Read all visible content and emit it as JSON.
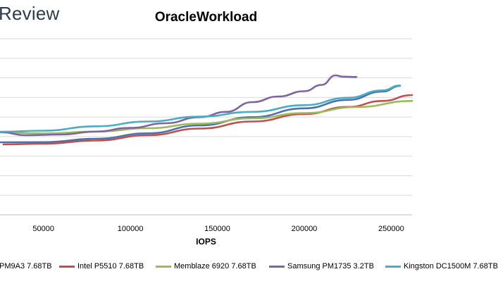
{
  "brand": "Review",
  "chart_data": {
    "type": "line",
    "title": "OracleWorkload",
    "xlabel": "IOPS",
    "ylabel": "",
    "xlim": [
      25000,
      262000
    ],
    "ylim": [
      0,
      1
    ],
    "x_ticks": [
      "50000",
      "100000",
      "150000",
      "200000",
      "250000"
    ],
    "x_tick_values": [
      50000,
      100000,
      150000,
      200000,
      250000
    ],
    "grid": true,
    "legend_position": "bottom",
    "series": [
      {
        "name": "PM9A3 7.68TB",
        "color": "#4f6fae",
        "points": [
          [
            25000,
            0.412
          ],
          [
            50000,
            0.413
          ],
          [
            80000,
            0.432
          ],
          [
            110000,
            0.463
          ],
          [
            140000,
            0.508
          ],
          [
            170000,
            0.555
          ],
          [
            200000,
            0.605
          ],
          [
            225000,
            0.653
          ],
          [
            245000,
            0.7
          ],
          [
            255000,
            0.732
          ]
        ]
      },
      {
        "name": "Intel P5510 7.68TB",
        "color": "#c0504d",
        "points": [
          [
            27000,
            0.4
          ],
          [
            50000,
            0.404
          ],
          [
            80000,
            0.422
          ],
          [
            110000,
            0.452
          ],
          [
            140000,
            0.49
          ],
          [
            170000,
            0.53
          ],
          [
            200000,
            0.572
          ],
          [
            225000,
            0.613
          ],
          [
            245000,
            0.647
          ],
          [
            262000,
            0.68
          ]
        ]
      },
      {
        "name": "Memblaze 6920 7.68TB",
        "color": "#9bbb59",
        "points": [
          [
            25000,
            0.468
          ],
          [
            50000,
            0.462
          ],
          [
            80000,
            0.473
          ],
          [
            110000,
            0.492
          ],
          [
            140000,
            0.518
          ],
          [
            170000,
            0.548
          ],
          [
            200000,
            0.578
          ],
          [
            230000,
            0.612
          ],
          [
            262000,
            0.647
          ]
        ]
      },
      {
        "name": "Samsung PM1735 3.2TB",
        "color": "#8064a2",
        "points": [
          [
            25000,
            0.47
          ],
          [
            40000,
            0.452
          ],
          [
            60000,
            0.456
          ],
          [
            80000,
            0.473
          ],
          [
            100000,
            0.494
          ],
          [
            120000,
            0.52
          ],
          [
            140000,
            0.555
          ],
          [
            155000,
            0.585
          ],
          [
            170000,
            0.64
          ],
          [
            185000,
            0.672
          ],
          [
            200000,
            0.702
          ],
          [
            210000,
            0.738
          ],
          [
            218000,
            0.792
          ],
          [
            222000,
            0.785
          ],
          [
            230000,
            0.783
          ]
        ]
      },
      {
        "name": "Kingston DC1500M 7.68TB",
        "color": "#4bacc6",
        "points": [
          [
            25000,
            0.472
          ],
          [
            50000,
            0.478
          ],
          [
            80000,
            0.503
          ],
          [
            110000,
            0.53
          ],
          [
            140000,
            0.558
          ],
          [
            170000,
            0.585
          ],
          [
            200000,
            0.623
          ],
          [
            225000,
            0.665
          ],
          [
            245000,
            0.707
          ],
          [
            255000,
            0.735
          ]
        ]
      }
    ]
  },
  "legend_labels": [
    "PM9A3 7.68TB",
    "Intel P5510 7.68TB",
    "Memblaze 6920 7.68TB",
    "Samsung PM1735 3.2TB",
    "Kingston DC1500M 7.68TB"
  ]
}
